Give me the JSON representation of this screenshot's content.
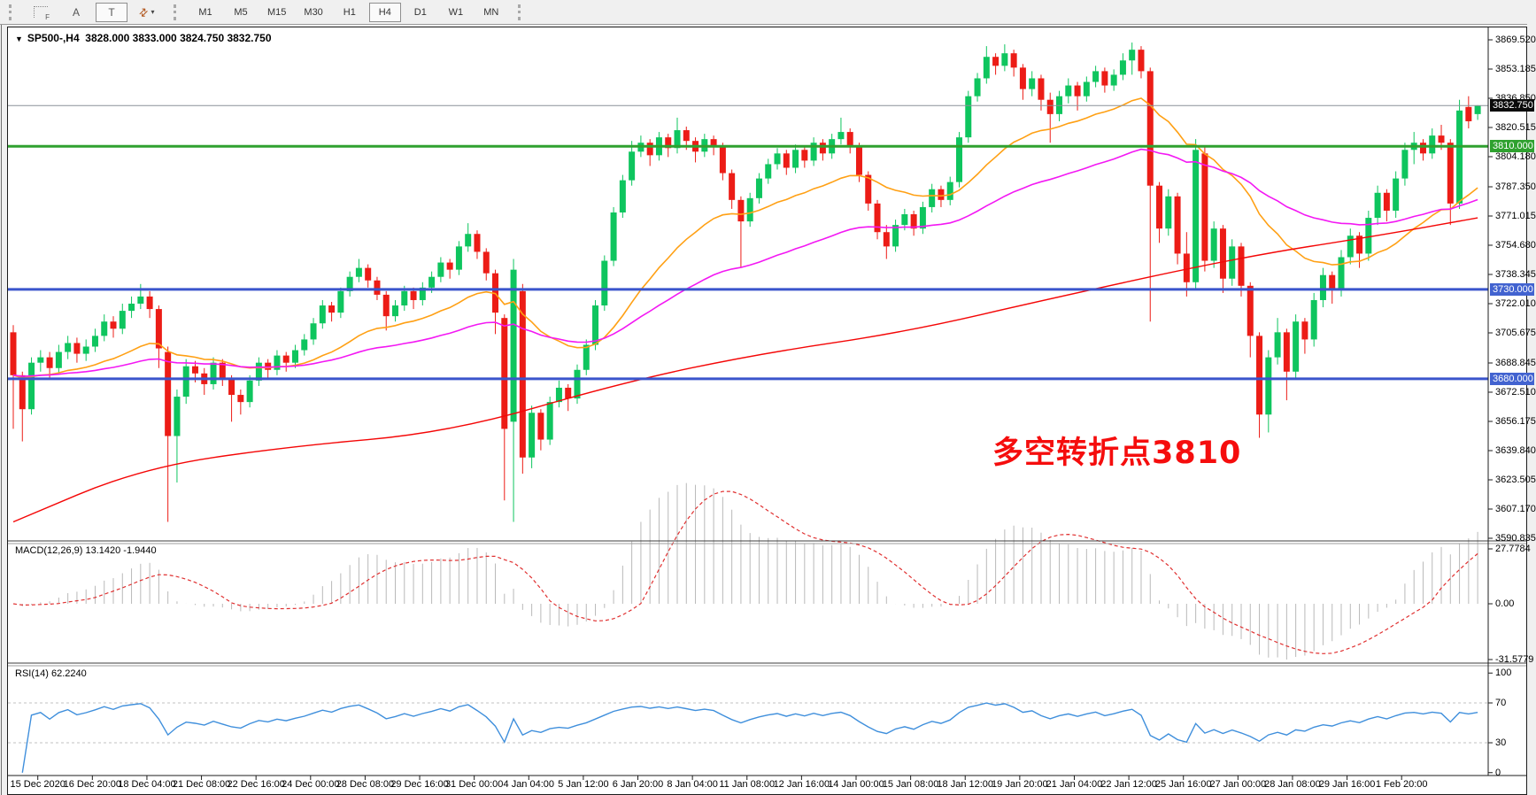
{
  "toolbar": {
    "icons": [
      {
        "id": "chart-template-icon",
        "label": "F"
      },
      {
        "id": "text-annotation-icon",
        "label": "A"
      },
      {
        "id": "text-box-icon",
        "label": "T"
      },
      {
        "id": "cycle-arrows-icon",
        "label": "⇄"
      },
      {
        "id": "dropdown-caret-icon",
        "label": "▾"
      }
    ],
    "timeframes": [
      "M1",
      "M5",
      "M15",
      "M30",
      "H1",
      "H4",
      "D1",
      "W1",
      "MN"
    ],
    "active_timeframe": "H4"
  },
  "header": {
    "dropdown_glyph": "▼",
    "title": "SP500-,H4",
    "ohlc_text": "3828.000 3833.000 3824.750 3832.750"
  },
  "annotation": {
    "text": "多空转折点3810",
    "color": "#f50d0d"
  },
  "indicators": {
    "macd_label": "MACD(12,26,9) 13.1420 -1.9440",
    "rsi_label": "RSI(14) 62.2240"
  },
  "colors": {
    "up_candle": "#0ec55e",
    "down_candle": "#ec1c16",
    "ma_fast": "#ffa014",
    "ma_mid": "#f318f3",
    "ma_slow": "#f40606",
    "hline_green": "#2fa12f",
    "hline_blue": "#3a55cc",
    "current_price_line": "#8a9199",
    "macd_hist": "#b9b9b9",
    "macd_signal": "#e03030",
    "rsi_line": "#3f8fdc",
    "rsi_level_dash": "#c0c0c0",
    "marker_current_bg": "#0a0a0a",
    "marker_green_bg": "#2fa12f",
    "marker_blue_bg": "#4263d0"
  },
  "chart_data": {
    "type": "candlestick",
    "symbol": "SP500-",
    "timeframe": "H4",
    "current_ohlc": {
      "open": 3828.0,
      "high": 3833.0,
      "low": 3824.75,
      "close": 3832.75
    },
    "y_axis": {
      "min": 3590.835,
      "max": 3869.52,
      "labels": [
        "3869.520",
        "3853.185",
        "3836.850",
        "3820.515",
        "3804.180",
        "3787.350",
        "3771.015",
        "3754.680",
        "3738.345",
        "3722.010",
        "3705.675",
        "3688.845",
        "3672.510",
        "3656.175",
        "3639.840",
        "3623.505",
        "3607.170",
        "3590.835"
      ],
      "label_values": [
        3869.52,
        3853.185,
        3836.85,
        3820.515,
        3804.18,
        3787.35,
        3771.015,
        3754.68,
        3738.345,
        3722.01,
        3705.675,
        3688.845,
        3672.51,
        3656.175,
        3639.84,
        3623.505,
        3607.17,
        3590.835
      ]
    },
    "y_markers": [
      {
        "text": "3832.750",
        "price": 3832.75,
        "bg": "marker_current_bg"
      },
      {
        "text": "3810.000",
        "price": 3810.0,
        "bg": "marker_green_bg"
      },
      {
        "text": "3730.000",
        "price": 3730.0,
        "bg": "marker_blue_bg"
      },
      {
        "text": "3680.000",
        "price": 3680.0,
        "bg": "marker_blue_bg"
      }
    ],
    "hlines": [
      {
        "name": "resistance-3810",
        "price": 3810.0,
        "color": "hline_green",
        "width": 3
      },
      {
        "name": "support-3730",
        "price": 3730.0,
        "color": "hline_blue",
        "width": 3
      },
      {
        "name": "support-3680",
        "price": 3680.0,
        "color": "hline_blue",
        "width": 3
      },
      {
        "name": "current-price",
        "price": 3832.75,
        "color": "current_price_line",
        "width": 1
      }
    ],
    "x_labels": [
      "15 Dec 2020",
      "16 Dec 20:00",
      "18 Dec 04:00",
      "21 Dec 08:00",
      "22 Dec 16:00",
      "24 Dec 00:00",
      "28 Dec 08:00",
      "29 Dec 16:00",
      "31 Dec 00:00",
      "4 Jan 04:00",
      "5 Jan 12:00",
      "6 Jan 20:00",
      "8 Jan 04:00",
      "11 Jan 08:00",
      "12 Jan 16:00",
      "14 Jan 00:00",
      "15 Jan 08:00",
      "18 Jan 12:00",
      "19 Jan 20:00",
      "21 Jan 04:00",
      "22 Jan 12:00",
      "25 Jan 16:00",
      "27 Jan 00:00",
      "28 Jan 08:00",
      "29 Jan 16:00",
      "1 Feb 20:00"
    ],
    "candles": [
      [
        3706,
        3710,
        3652,
        3682
      ],
      [
        3682,
        3684,
        3645,
        3663
      ],
      [
        3663,
        3692,
        3660,
        3689
      ],
      [
        3689,
        3696,
        3684,
        3692
      ],
      [
        3692,
        3695,
        3680,
        3686
      ],
      [
        3686,
        3699,
        3683,
        3695
      ],
      [
        3695,
        3704,
        3691,
        3700
      ],
      [
        3700,
        3703,
        3689,
        3694
      ],
      [
        3694,
        3702,
        3690,
        3698
      ],
      [
        3698,
        3708,
        3695,
        3704
      ],
      [
        3704,
        3716,
        3701,
        3712
      ],
      [
        3712,
        3715,
        3703,
        3708
      ],
      [
        3708,
        3722,
        3705,
        3718
      ],
      [
        3718,
        3726,
        3714,
        3722
      ],
      [
        3722,
        3733,
        3719,
        3726
      ],
      [
        3726,
        3729,
        3714,
        3719
      ],
      [
        3719,
        3721,
        3686,
        3697
      ],
      [
        3695,
        3698,
        3600,
        3648
      ],
      [
        3648,
        3674,
        3622,
        3670
      ],
      [
        3670,
        3691,
        3666,
        3687
      ],
      [
        3687,
        3690,
        3678,
        3683
      ],
      [
        3683,
        3686,
        3671,
        3677
      ],
      [
        3677,
        3692,
        3674,
        3689
      ],
      [
        3689,
        3691,
        3676,
        3680
      ],
      [
        3680,
        3682,
        3656,
        3671
      ],
      [
        3671,
        3674,
        3660,
        3667
      ],
      [
        3667,
        3682,
        3664,
        3679
      ],
      [
        3679,
        3692,
        3676,
        3689
      ],
      [
        3689,
        3691,
        3680,
        3685
      ],
      [
        3685,
        3696,
        3682,
        3693
      ],
      [
        3693,
        3695,
        3684,
        3689
      ],
      [
        3689,
        3699,
        3686,
        3696
      ],
      [
        3696,
        3705,
        3693,
        3702
      ],
      [
        3702,
        3714,
        3699,
        3711
      ],
      [
        3711,
        3724,
        3708,
        3721
      ],
      [
        3721,
        3723,
        3712,
        3717
      ],
      [
        3717,
        3731,
        3714,
        3729
      ],
      [
        3729,
        3740,
        3726,
        3737
      ],
      [
        3737,
        3747,
        3734,
        3742
      ],
      [
        3742,
        3744,
        3731,
        3735
      ],
      [
        3735,
        3737,
        3724,
        3727
      ],
      [
        3727,
        3729,
        3707,
        3715
      ],
      [
        3715,
        3724,
        3712,
        3721
      ],
      [
        3721,
        3732,
        3718,
        3729
      ],
      [
        3729,
        3731,
        3719,
        3724
      ],
      [
        3724,
        3734,
        3721,
        3731
      ],
      [
        3731,
        3740,
        3728,
        3737
      ],
      [
        3737,
        3748,
        3734,
        3745
      ],
      [
        3745,
        3747,
        3736,
        3741
      ],
      [
        3741,
        3757,
        3738,
        3754
      ],
      [
        3754,
        3767,
        3751,
        3761
      ],
      [
        3761,
        3763,
        3747,
        3751
      ],
      [
        3751,
        3753,
        3735,
        3739
      ],
      [
        3739,
        3741,
        3705,
        3717
      ],
      [
        3714,
        3716,
        3612,
        3652
      ],
      [
        3656,
        3747,
        3600,
        3741
      ],
      [
        3729,
        3733,
        3627,
        3636
      ],
      [
        3636,
        3665,
        3630,
        3661
      ],
      [
        3661,
        3663,
        3640,
        3646
      ],
      [
        3646,
        3670,
        3643,
        3667
      ],
      [
        3667,
        3679,
        3664,
        3675
      ],
      [
        3675,
        3677,
        3662,
        3669
      ],
      [
        3669,
        3688,
        3666,
        3685
      ],
      [
        3685,
        3702,
        3682,
        3699
      ],
      [
        3699,
        3724,
        3696,
        3721
      ],
      [
        3721,
        3749,
        3718,
        3746
      ],
      [
        3746,
        3776,
        3743,
        3773
      ],
      [
        3773,
        3794,
        3770,
        3791
      ],
      [
        3791,
        3813,
        3788,
        3807
      ],
      [
        3807,
        3816,
        3804,
        3812
      ],
      [
        3812,
        3814,
        3799,
        3805
      ],
      [
        3805,
        3818,
        3802,
        3815
      ],
      [
        3815,
        3817,
        3804,
        3809
      ],
      [
        3809,
        3826,
        3806,
        3819
      ],
      [
        3819,
        3821,
        3808,
        3813
      ],
      [
        3813,
        3815,
        3801,
        3807
      ],
      [
        3807,
        3817,
        3804,
        3814
      ],
      [
        3814,
        3816,
        3805,
        3810
      ],
      [
        3810,
        3812,
        3791,
        3795
      ],
      [
        3795,
        3797,
        3775,
        3780
      ],
      [
        3780,
        3782,
        3742,
        3768
      ],
      [
        3768,
        3784,
        3765,
        3781
      ],
      [
        3781,
        3795,
        3778,
        3792
      ],
      [
        3792,
        3803,
        3789,
        3800
      ],
      [
        3800,
        3809,
        3797,
        3806
      ],
      [
        3806,
        3808,
        3794,
        3798
      ],
      [
        3798,
        3811,
        3795,
        3808
      ],
      [
        3808,
        3810,
        3798,
        3802
      ],
      [
        3802,
        3815,
        3799,
        3812
      ],
      [
        3812,
        3814,
        3802,
        3806
      ],
      [
        3806,
        3817,
        3803,
        3814
      ],
      [
        3814,
        3826,
        3811,
        3818
      ],
      [
        3818,
        3820,
        3806,
        3810
      ],
      [
        3810,
        3812,
        3790,
        3794
      ],
      [
        3794,
        3796,
        3774,
        3778
      ],
      [
        3778,
        3780,
        3758,
        3762
      ],
      [
        3762,
        3766,
        3747,
        3754
      ],
      [
        3754,
        3769,
        3751,
        3766
      ],
      [
        3766,
        3775,
        3763,
        3772
      ],
      [
        3772,
        3774,
        3760,
        3764
      ],
      [
        3764,
        3779,
        3761,
        3776
      ],
      [
        3776,
        3789,
        3773,
        3786
      ],
      [
        3786,
        3788,
        3776,
        3780
      ],
      [
        3780,
        3793,
        3777,
        3790
      ],
      [
        3790,
        3818,
        3787,
        3815
      ],
      [
        3815,
        3841,
        3812,
        3838
      ],
      [
        3838,
        3851,
        3835,
        3848
      ],
      [
        3848,
        3866,
        3845,
        3860
      ],
      [
        3860,
        3862,
        3850,
        3855
      ],
      [
        3855,
        3867,
        3852,
        3862
      ],
      [
        3862,
        3864,
        3849,
        3854
      ],
      [
        3854,
        3856,
        3836,
        3842
      ],
      [
        3842,
        3852,
        3838,
        3848
      ],
      [
        3848,
        3850,
        3830,
        3836
      ],
      [
        3836,
        3840,
        3812,
        3828
      ],
      [
        3828,
        3841,
        3824,
        3838
      ],
      [
        3838,
        3848,
        3834,
        3844
      ],
      [
        3844,
        3846,
        3830,
        3838
      ],
      [
        3838,
        3849,
        3835,
        3846
      ],
      [
        3846,
        3855,
        3843,
        3852
      ],
      [
        3852,
        3854,
        3840,
        3844
      ],
      [
        3844,
        3853,
        3841,
        3850
      ],
      [
        3850,
        3862,
        3847,
        3858
      ],
      [
        3858,
        3868,
        3850,
        3864
      ],
      [
        3864,
        3866,
        3848,
        3852
      ],
      [
        3852,
        3854,
        3712,
        3788
      ],
      [
        3788,
        3790,
        3756,
        3764
      ],
      [
        3764,
        3786,
        3760,
        3782
      ],
      [
        3782,
        3784,
        3744,
        3750
      ],
      [
        3750,
        3762,
        3726,
        3734
      ],
      [
        3734,
        3814,
        3730,
        3808
      ],
      [
        3806,
        3810,
        3740,
        3746
      ],
      [
        3746,
        3768,
        3742,
        3764
      ],
      [
        3764,
        3766,
        3728,
        3736
      ],
      [
        3736,
        3758,
        3732,
        3754
      ],
      [
        3754,
        3756,
        3726,
        3732
      ],
      [
        3732,
        3734,
        3692,
        3704
      ],
      [
        3704,
        3706,
        3647,
        3660
      ],
      [
        3660,
        3696,
        3650,
        3692
      ],
      [
        3692,
        3714,
        3688,
        3706
      ],
      [
        3706,
        3708,
        3668,
        3684
      ],
      [
        3684,
        3716,
        3680,
        3712
      ],
      [
        3712,
        3714,
        3694,
        3702
      ],
      [
        3702,
        3728,
        3698,
        3724
      ],
      [
        3724,
        3742,
        3720,
        3738
      ],
      [
        3738,
        3740,
        3722,
        3730
      ],
      [
        3730,
        3752,
        3726,
        3748
      ],
      [
        3748,
        3764,
        3744,
        3760
      ],
      [
        3760,
        3762,
        3742,
        3750
      ],
      [
        3750,
        3774,
        3746,
        3770
      ],
      [
        3770,
        3788,
        3766,
        3784
      ],
      [
        3784,
        3786,
        3768,
        3774
      ],
      [
        3774,
        3796,
        3770,
        3792
      ],
      [
        3792,
        3812,
        3788,
        3808
      ],
      [
        3808,
        3818,
        3800,
        3812
      ],
      [
        3812,
        3814,
        3802,
        3806
      ],
      [
        3806,
        3820,
        3803,
        3816
      ],
      [
        3816,
        3822,
        3808,
        3812
      ],
      [
        3812,
        3814,
        3766,
        3778
      ],
      [
        3778,
        3836,
        3775,
        3830
      ],
      [
        3832,
        3838,
        3820,
        3824
      ],
      [
        3828,
        3833,
        3824.75,
        3832.75
      ]
    ],
    "moving_averages": [
      {
        "name": "ma-fast-orange",
        "type": "ema",
        "period": 24,
        "color": "ma_fast"
      },
      {
        "name": "ma-mid-magenta",
        "type": "ema",
        "period": 58,
        "color": "ma_mid"
      },
      {
        "name": "ma-slow-red",
        "type": "anchored",
        "color": "ma_slow",
        "points": [
          [
            0,
            3600
          ],
          [
            14,
            3630
          ],
          [
            30,
            3642
          ],
          [
            48,
            3650
          ],
          [
            67,
            3678
          ],
          [
            82,
            3694
          ],
          [
            98,
            3706
          ],
          [
            115,
            3726
          ],
          [
            135,
            3748
          ],
          [
            150,
            3760
          ],
          [
            161,
            3770
          ]
        ]
      }
    ],
    "macd": {
      "fast": 12,
      "slow": 26,
      "signal": 9,
      "value_main": 13.142,
      "value_signal": -1.944,
      "axis_labels": [
        "27.7784",
        "0.00",
        "-31.5779"
      ],
      "axis_values": [
        27.7784,
        0.0,
        -31.5779
      ]
    },
    "rsi": {
      "period": 14,
      "value": 62.224,
      "axis_labels": [
        "100",
        "70",
        "30",
        "0"
      ],
      "axis_values": [
        100,
        70,
        30,
        0
      ],
      "levels": [
        70,
        30
      ]
    }
  }
}
